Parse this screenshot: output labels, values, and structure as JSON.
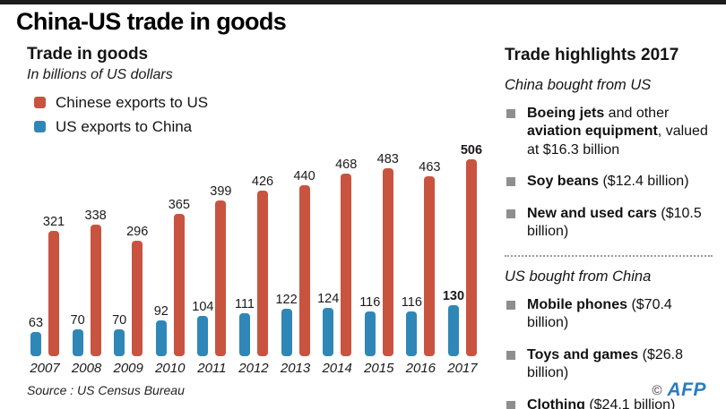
{
  "page": {
    "title": "China-US trade in goods"
  },
  "chart": {
    "title": "Trade in goods",
    "subtitle": "In billions of US dollars",
    "legend": [
      {
        "label": "Chinese exports to US",
        "color": "#c85440"
      },
      {
        "label": "US exports to China",
        "color": "#2f87b8"
      }
    ]
  },
  "chart_data": {
    "type": "bar",
    "title": "Trade in goods",
    "subtitle": "In billions of US dollars",
    "unit": "billions of US dollars",
    "categories": [
      "2007",
      "2008",
      "2009",
      "2010",
      "2011",
      "2012",
      "2013",
      "2014",
      "2015",
      "2016",
      "2017"
    ],
    "series": [
      {
        "name": "US exports to China",
        "color": "#2f87b8",
        "values": [
          63,
          70,
          70,
          92,
          104,
          111,
          122,
          124,
          116,
          116,
          130
        ]
      },
      {
        "name": "Chinese exports to US",
        "color": "#c85440",
        "values": [
          321,
          338,
          296,
          365,
          399,
          426,
          440,
          468,
          483,
          463,
          506
        ]
      }
    ],
    "ylim": [
      0,
      520
    ],
    "grid": false,
    "axes_shown": false,
    "data_labels": true,
    "highlight_last_category": true,
    "legend_position": "top-left"
  },
  "highlights": {
    "title": "Trade highlights 2017",
    "sections": [
      {
        "heading": "China bought from US",
        "items": [
          {
            "segments": [
              {
                "t": "Boeing jets",
                "b": true
              },
              {
                "t": " and other ",
                "b": false
              },
              {
                "t": "aviation equipment",
                "b": true
              },
              {
                "t": ", valued at $16.3 billion",
                "b": false
              }
            ]
          },
          {
            "segments": [
              {
                "t": "Soy beans",
                "b": true
              },
              {
                "t": " ($12.4 billion)",
                "b": false
              }
            ]
          },
          {
            "segments": [
              {
                "t": "New and used cars",
                "b": true
              },
              {
                "t": " ($10.5 billion)",
                "b": false
              }
            ]
          }
        ]
      },
      {
        "heading": "US bought from China",
        "items": [
          {
            "segments": [
              {
                "t": "Mobile phones",
                "b": true
              },
              {
                "t": " ($70.4 billion)",
                "b": false
              }
            ]
          },
          {
            "segments": [
              {
                "t": "Toys and games",
                "b": true
              },
              {
                "t": " ($26.8 billion)",
                "b": false
              }
            ]
          },
          {
            "segments": [
              {
                "t": "Clothing",
                "b": true
              },
              {
                "t": " ($24.1 billion)",
                "b": false
              }
            ]
          }
        ]
      }
    ]
  },
  "footer": {
    "source": "Source : US Census Bureau",
    "credit_symbol": "©",
    "credit": "AFP"
  }
}
